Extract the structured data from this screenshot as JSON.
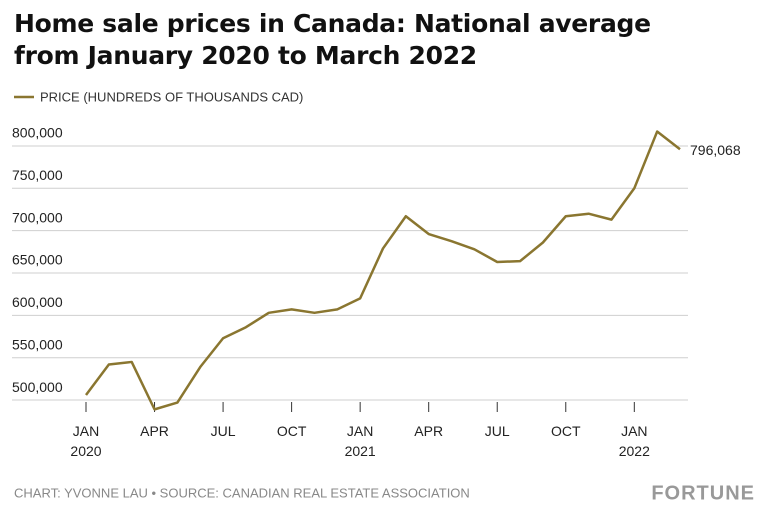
{
  "chart_data": {
    "type": "line",
    "title": "Home sale prices in Canada: National average from January 2020 to March 2022",
    "categories": [
      "JAN\n2020",
      null,
      null,
      "APR",
      null,
      null,
      "JUL",
      null,
      null,
      "OCT",
      null,
      null,
      "JAN\n2021",
      null,
      null,
      "APR",
      null,
      null,
      "JUL",
      null,
      null,
      "OCT",
      null,
      null,
      "JAN\n2022",
      null,
      null
    ],
    "series": [
      {
        "name": "PRICE (HUNDREDS OF THOUSANDS CAD)",
        "color": "#8a7630",
        "values": [
          506000,
          542000,
          545000,
          489000,
          497000,
          539000,
          573000,
          586000,
          603000,
          607000,
          603000,
          607000,
          620000,
          679000,
          717000,
          696000,
          687500,
          678000,
          663000,
          664000,
          686000,
          717000,
          720000,
          713000,
          750000,
          817000,
          796068
        ],
        "value_labels": [
          null,
          null,
          null,
          null,
          null,
          null,
          null,
          null,
          null,
          null,
          null,
          null,
          null,
          null,
          null,
          null,
          null,
          null,
          null,
          null,
          null,
          null,
          null,
          null,
          null,
          null,
          "796,068"
        ]
      }
    ],
    "ylim": [
      480000,
      820000
    ],
    "yticks": [
      {
        "value": 500000,
        "label": "500,000"
      },
      {
        "value": 550000,
        "label": "550,000"
      },
      {
        "value": 600000,
        "label": "600,000"
      },
      {
        "value": 650000,
        "label": "650,000"
      },
      {
        "value": 700000,
        "label": "700,000"
      },
      {
        "value": 750000,
        "label": "750,000"
      },
      {
        "value": 800000,
        "label": "800,000"
      }
    ],
    "grid": true,
    "legend": "top-left",
    "footer": "CHART: YVONNE LAU • SOURCE: CANADIAN REAL ESTATE ASSOCIATION",
    "brand": "FORTUNE"
  }
}
